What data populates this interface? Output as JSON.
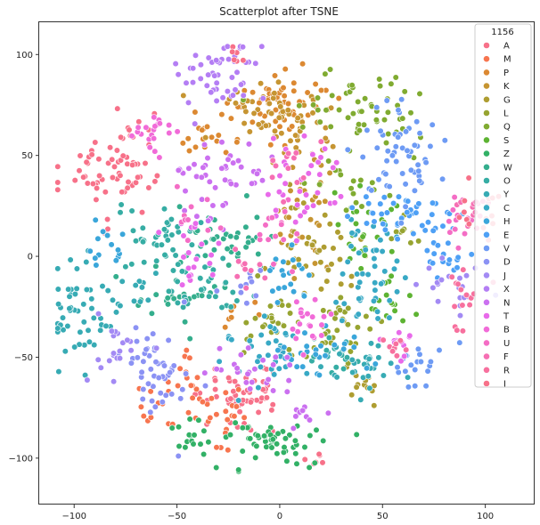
{
  "chart_data": {
    "type": "scatter",
    "title": "Scatterplot after TSNE",
    "xlabel": "",
    "ylabel": "",
    "xlim": [
      -117,
      124
    ],
    "ylim": [
      -123,
      116
    ],
    "xticks": [
      -100,
      -50,
      0,
      50,
      100
    ],
    "yticks": [
      -100,
      -50,
      0,
      50,
      100
    ],
    "grid": false,
    "legend": {
      "title": "1156",
      "placement": "top-right"
    },
    "series": [
      {
        "name": "A",
        "color": "#f77189",
        "clusters": [
          [
            -80,
            42,
            12,
            12,
            70
          ],
          [
            -18,
            -70,
            8,
            8,
            55
          ],
          [
            15,
            -100,
            3,
            2,
            6
          ]
        ]
      },
      {
        "name": "M",
        "color": "#f7754f",
        "clusters": [
          [
            -30,
            -78,
            7,
            8,
            25
          ],
          [
            -60,
            -72,
            6,
            6,
            12
          ],
          [
            -48,
            -55,
            5,
            5,
            10
          ]
        ]
      },
      {
        "name": "P",
        "color": "#dc8932",
        "clusters": [
          [
            0,
            75,
            12,
            8,
            55
          ],
          [
            -35,
            62,
            8,
            6,
            20
          ],
          [
            -18,
            -28,
            5,
            4,
            8
          ]
        ]
      },
      {
        "name": "K",
        "color": "#c69532",
        "clusters": [
          [
            -10,
            70,
            14,
            10,
            45
          ],
          [
            15,
            55,
            8,
            8,
            25
          ],
          [
            10,
            20,
            8,
            14,
            30
          ]
        ]
      },
      {
        "name": "G",
        "color": "#ae9d31",
        "clusters": [
          [
            15,
            0,
            10,
            14,
            45
          ],
          [
            40,
            -65,
            4,
            4,
            12
          ]
        ]
      },
      {
        "name": "L",
        "color": "#97a431",
        "clusters": [
          [
            30,
            -35,
            10,
            8,
            30
          ],
          [
            -5,
            -30,
            8,
            8,
            25
          ],
          [
            60,
            10,
            4,
            5,
            10
          ]
        ]
      },
      {
        "name": "Q",
        "color": "#80ab31",
        "clusters": [
          [
            40,
            70,
            15,
            10,
            55
          ],
          [
            35,
            35,
            8,
            8,
            15
          ]
        ]
      },
      {
        "name": "S",
        "color": "#5db332",
        "clusters": [
          [
            42,
            15,
            8,
            10,
            25
          ],
          [
            55,
            -25,
            6,
            6,
            15
          ]
        ]
      },
      {
        "name": "Z",
        "color": "#32b166",
        "clusters": [
          [
            -5,
            -93,
            12,
            6,
            55
          ],
          [
            -40,
            -90,
            6,
            5,
            15
          ]
        ]
      },
      {
        "name": "W",
        "color": "#34ae8d",
        "clusters": [
          [
            -25,
            5,
            10,
            10,
            40
          ],
          [
            -50,
            -20,
            8,
            8,
            25
          ]
        ]
      },
      {
        "name": "O",
        "color": "#36ada4",
        "clusters": [
          [
            -60,
            8,
            10,
            8,
            40
          ],
          [
            -35,
            -15,
            10,
            8,
            30
          ],
          [
            25,
            -50,
            6,
            6,
            15
          ]
        ]
      },
      {
        "name": "Y",
        "color": "#37abb4",
        "clusters": [
          [
            -95,
            -28,
            8,
            12,
            50
          ],
          [
            40,
            -55,
            10,
            6,
            30
          ],
          [
            -75,
            -20,
            6,
            6,
            15
          ]
        ]
      },
      {
        "name": "C",
        "color": "#38a9c5",
        "clusters": [
          [
            -5,
            -45,
            10,
            8,
            35
          ],
          [
            45,
            0,
            10,
            10,
            30
          ],
          [
            40,
            -20,
            8,
            8,
            20
          ]
        ]
      },
      {
        "name": "H",
        "color": "#3aa6da",
        "clusters": [
          [
            20,
            -48,
            10,
            8,
            25
          ],
          [
            5,
            -10,
            8,
            8,
            20
          ],
          [
            -85,
            5,
            6,
            8,
            15
          ]
        ]
      },
      {
        "name": "E",
        "color": "#4ea0f5",
        "clusters": [
          [
            60,
            20,
            12,
            8,
            40
          ],
          [
            80,
            0,
            8,
            8,
            20
          ]
        ]
      },
      {
        "name": "V",
        "color": "#6e9bf4",
        "clusters": [
          [
            58,
            48,
            10,
            12,
            55
          ],
          [
            65,
            -55,
            8,
            6,
            20
          ]
        ]
      },
      {
        "name": "D",
        "color": "#8b92f4",
        "clusters": [
          [
            -60,
            -55,
            8,
            12,
            50
          ],
          [
            -15,
            -15,
            6,
            6,
            10
          ]
        ]
      },
      {
        "name": "J",
        "color": "#a38af4",
        "clusters": [
          [
            -80,
            -45,
            6,
            8,
            20
          ],
          [
            85,
            -15,
            8,
            8,
            20
          ]
        ]
      },
      {
        "name": "X",
        "color": "#b47ef4",
        "clusters": [
          [
            -25,
            95,
            10,
            8,
            40
          ],
          [
            -30,
            80,
            6,
            6,
            10
          ]
        ]
      },
      {
        "name": "N",
        "color": "#cb70f0",
        "clusters": [
          [
            -30,
            40,
            12,
            10,
            45
          ],
          [
            -15,
            -55,
            10,
            5,
            25
          ],
          [
            10,
            -80,
            4,
            4,
            10
          ]
        ]
      },
      {
        "name": "T",
        "color": "#e86aea",
        "clusters": [
          [
            -40,
            0,
            6,
            10,
            20
          ],
          [
            10,
            35,
            10,
            12,
            35
          ],
          [
            60,
            -45,
            6,
            4,
            12
          ]
        ]
      },
      {
        "name": "B",
        "color": "#f16bd8",
        "clusters": [
          [
            -60,
            60,
            8,
            6,
            20
          ],
          [
            15,
            -35,
            6,
            8,
            20
          ]
        ]
      },
      {
        "name": "U",
        "color": "#f46dc5",
        "clusters": [
          [
            -5,
            10,
            6,
            8,
            15
          ],
          [
            -45,
            20,
            6,
            6,
            10
          ],
          [
            85,
            15,
            6,
            8,
            15
          ]
        ]
      },
      {
        "name": "F",
        "color": "#f66fb3",
        "clusters": [
          [
            5,
            45,
            6,
            6,
            12
          ],
          [
            -20,
            -5,
            6,
            6,
            10
          ],
          [
            95,
            25,
            5,
            5,
            12
          ]
        ]
      },
      {
        "name": "R",
        "color": "#f7709e",
        "clusters": [
          [
            90,
            -20,
            6,
            8,
            15
          ],
          [
            55,
            -45,
            4,
            3,
            8
          ]
        ]
      },
      {
        "name": "I",
        "color": "#f77189",
        "clusters": [
          [
            100,
            20,
            6,
            6,
            15
          ],
          [
            -20,
            100,
            3,
            3,
            6
          ]
        ]
      }
    ]
  }
}
